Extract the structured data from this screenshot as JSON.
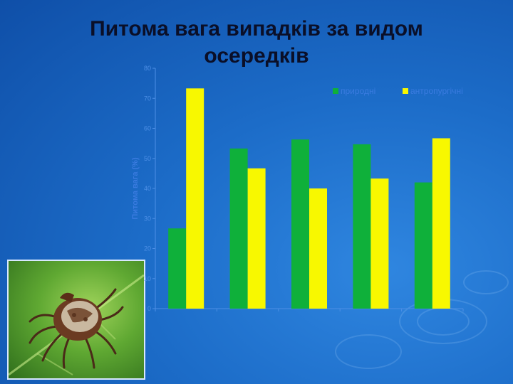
{
  "title_line1": "Питома вага випадків за видом",
  "title_line2": "осередків",
  "colors": {
    "natural": "#0fb03a",
    "anthropurgic": "#f8f800",
    "background": "#1c6cc8"
  },
  "chart_data": {
    "type": "bar",
    "title": "Питома вага випадків за видом осередків",
    "ylabel": "Питома вага (%)",
    "xlabel": "",
    "ylim": [
      0,
      80
    ],
    "yticks": [
      "0",
      "10",
      "20",
      "30",
      "40",
      "50",
      "60",
      "70",
      "80"
    ],
    "categories": [
      "",
      "",
      "",
      "",
      ""
    ],
    "legend_position": "top-right",
    "grid": false,
    "series": [
      {
        "name": "природні",
        "values": [
          26.7,
          53.3,
          56.3,
          54.7,
          42.0
        ]
      },
      {
        "name": "антропургічні",
        "values": [
          73.3,
          46.7,
          40.0,
          43.3,
          56.7
        ]
      }
    ]
  },
  "image": {
    "subject": "tick-on-leaf-photo"
  }
}
